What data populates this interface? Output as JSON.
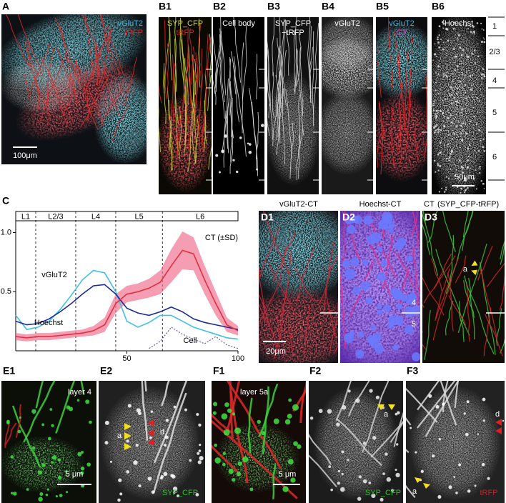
{
  "panels": {
    "A": {
      "label": "A",
      "channels": [
        "vGluT2",
        "tRFP"
      ],
      "scale_bar": "100μm"
    },
    "B1": {
      "label": "B1",
      "channels": [
        "SYP_CFP",
        "tRFP"
      ]
    },
    "B2": {
      "label": "B2",
      "channels": [
        "Cell body"
      ]
    },
    "B3": {
      "label": "B3",
      "channels": [
        "SYP_CFP",
        "+tRFP"
      ]
    },
    "B4": {
      "label": "B4",
      "channels": [
        "vGluT2"
      ]
    },
    "B5": {
      "label": "B5",
      "channels": [
        "vGluT2",
        "CT"
      ]
    },
    "B6": {
      "label": "B6",
      "channels": [
        "Hoechst"
      ],
      "scale_bar": "50μm"
    },
    "layers": [
      "1",
      "2/3",
      "4",
      "5",
      "6"
    ],
    "C": {
      "label": "C"
    },
    "D1": {
      "label": "D1",
      "title": "vGluT2-CT",
      "scale_bar": "20μm"
    },
    "D2": {
      "label": "D2",
      "title": "Hoechst-CT",
      "layer_marks": [
        "4",
        "5"
      ]
    },
    "D3": {
      "label": "D3",
      "title": "CT",
      "subtitle": "(SYP_CFP-tRFP)",
      "annotations": [
        "a"
      ]
    },
    "E1": {
      "label": "E1",
      "title": "layer 4",
      "scale_bar": "5 μm"
    },
    "E2": {
      "label": "E2",
      "annotations": [
        "a",
        "d"
      ],
      "channel": "SYP_CFP"
    },
    "F1": {
      "label": "F1",
      "title": "layer 5a",
      "scale_bar": "5 μm"
    },
    "F2": {
      "label": "F2",
      "annotations": [
        "a"
      ],
      "channel": "SYP_CFP"
    },
    "F3": {
      "label": "F3",
      "annotations": [
        "d",
        "a"
      ],
      "channel": "tRFP"
    }
  },
  "chart_data": {
    "type": "line",
    "layers": [
      "L1",
      "L2/3",
      "L4",
      "L5",
      "L6"
    ],
    "layer_bounds": [
      0,
      9,
      27,
      45,
      66,
      100
    ],
    "x": [
      0,
      5,
      10,
      15,
      20,
      25,
      30,
      35,
      40,
      45,
      50,
      55,
      60,
      65,
      70,
      75,
      80,
      85,
      90,
      95,
      100
    ],
    "xlim": [
      0,
      100
    ],
    "xticks": [
      50,
      100
    ],
    "ylim": [
      0,
      1.1
    ],
    "yticks": [
      0.5,
      {
        "value": 1,
        "label": "1.0"
      }
    ],
    "series": [
      {
        "name": "vGluT2",
        "color": "#3ec0e6",
        "values": [
          0.3,
          0.18,
          0.2,
          0.25,
          0.35,
          0.47,
          0.6,
          0.68,
          0.66,
          0.5,
          0.25,
          0.2,
          0.24,
          0.3,
          0.3,
          0.25,
          0.2,
          0.17,
          0.14,
          0.11,
          0.1
        ]
      },
      {
        "name": "Hoechst",
        "color": "#1a2a9a",
        "values": [
          0.25,
          0.22,
          0.23,
          0.27,
          0.33,
          0.4,
          0.48,
          0.55,
          0.56,
          0.48,
          0.36,
          0.32,
          0.3,
          0.33,
          0.37,
          0.33,
          0.27,
          0.24,
          0.22,
          0.2,
          0.18
        ]
      },
      {
        "name": "CT (±SD)",
        "color": "#e03040",
        "values": [
          0.12,
          0.11,
          0.12,
          0.12,
          0.13,
          0.14,
          0.15,
          0.17,
          0.22,
          0.4,
          0.48,
          0.5,
          0.53,
          0.58,
          0.72,
          0.85,
          0.82,
          0.6,
          0.4,
          0.22,
          0.17
        ],
        "errors": [
          0.03,
          0.03,
          0.03,
          0.03,
          0.03,
          0.03,
          0.03,
          0.04,
          0.06,
          0.08,
          0.07,
          0.07,
          0.08,
          0.1,
          0.14,
          0.16,
          0.14,
          0.12,
          0.1,
          0.06,
          0.04
        ]
      },
      {
        "name": "Cell",
        "color": "#6a5aa8",
        "values": [
          null,
          null,
          null,
          null,
          null,
          null,
          null,
          null,
          null,
          null,
          null,
          null,
          0.02,
          0.08,
          0.2,
          0.14,
          0.1,
          0.06,
          0.12,
          0.05,
          0.02
        ]
      }
    ]
  }
}
